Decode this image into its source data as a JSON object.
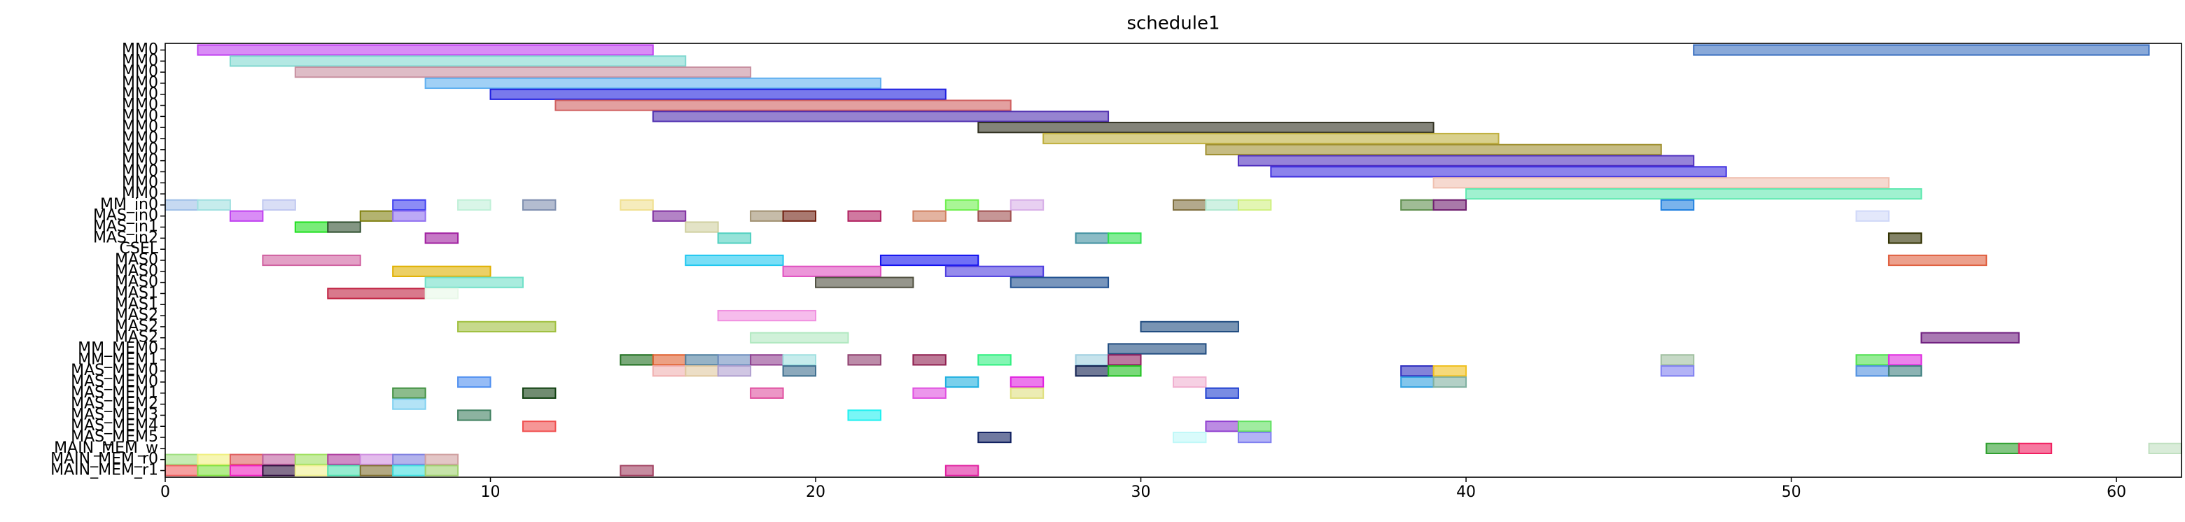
{
  "chart_data": {
    "type": "gantt",
    "title": "schedule1",
    "xlim": [
      0,
      62
    ],
    "xticks": [
      0,
      10,
      20,
      30,
      40,
      50,
      60
    ],
    "rows": [
      {
        "label": "MM0",
        "bars": [
          {
            "start": 1,
            "end": 15,
            "color": "#c040f0"
          },
          {
            "start": 47,
            "end": 61,
            "color": "#3a6fc0"
          }
        ]
      },
      {
        "label": "MM0",
        "bars": [
          {
            "start": 2,
            "end": 16,
            "color": "#80d8d0"
          }
        ]
      },
      {
        "label": "MM0",
        "bars": [
          {
            "start": 4,
            "end": 18,
            "color": "#c890a0"
          }
        ]
      },
      {
        "label": "MM0",
        "bars": [
          {
            "start": 8,
            "end": 22,
            "color": "#60b0f0"
          }
        ]
      },
      {
        "label": "MM0",
        "bars": [
          {
            "start": 10,
            "end": 24,
            "color": "#2020e0"
          }
        ]
      },
      {
        "label": "MM0",
        "bars": [
          {
            "start": 12,
            "end": 26,
            "color": "#d06060"
          }
        ]
      },
      {
        "label": "MM0",
        "bars": [
          {
            "start": 15,
            "end": 29,
            "color": "#5030b0"
          }
        ]
      },
      {
        "label": "MM0",
        "bars": [
          {
            "start": 25,
            "end": 39,
            "color": "#303020"
          }
        ]
      },
      {
        "label": "MM0",
        "bars": [
          {
            "start": 27,
            "end": 41,
            "color": "#c0b040"
          }
        ]
      },
      {
        "label": "MM0",
        "bars": [
          {
            "start": 32,
            "end": 46,
            "color": "#a09030"
          }
        ]
      },
      {
        "label": "MM0",
        "bars": [
          {
            "start": 33,
            "end": 47,
            "color": "#5030c0"
          }
        ]
      },
      {
        "label": "MM0",
        "bars": [
          {
            "start": 34,
            "end": 48,
            "color": "#4030e0"
          }
        ]
      },
      {
        "label": "MM0",
        "bars": [
          {
            "start": 39,
            "end": 53,
            "color": "#f0c0b0"
          }
        ]
      },
      {
        "label": "MM0",
        "bars": [
          {
            "start": 40,
            "end": 54,
            "color": "#60e8b0"
          }
        ]
      },
      {
        "label": "MM_in0",
        "bars": [
          {
            "start": 0,
            "end": 1,
            "color": "#a0c0e8"
          },
          {
            "start": 1,
            "end": 2,
            "color": "#a0e0e0"
          },
          {
            "start": 3,
            "end": 4,
            "color": "#c0c8f0"
          },
          {
            "start": 7,
            "end": 8,
            "color": "#4040f0"
          },
          {
            "start": 9,
            "end": 10,
            "color": "#c0f0d8"
          },
          {
            "start": 11,
            "end": 12,
            "color": "#8090b0"
          },
          {
            "start": 14,
            "end": 15,
            "color": "#f0e090"
          },
          {
            "start": 24,
            "end": 25,
            "color": "#70f050"
          },
          {
            "start": 26,
            "end": 27,
            "color": "#d8b0e8"
          },
          {
            "start": 31,
            "end": 32,
            "color": "#807040"
          },
          {
            "start": 32,
            "end": 33,
            "color": "#b0e8d0"
          },
          {
            "start": 33,
            "end": 34,
            "color": "#d0f080"
          },
          {
            "start": 38,
            "end": 39,
            "color": "#609050"
          },
          {
            "start": 39,
            "end": 40,
            "color": "#702070"
          },
          {
            "start": 46,
            "end": 47,
            "color": "#2080e0"
          }
        ]
      },
      {
        "label": "MAS_in0",
        "bars": [
          {
            "start": 2,
            "end": 3,
            "color": "#c040f0"
          },
          {
            "start": 6,
            "end": 7,
            "color": "#808010"
          },
          {
            "start": 7,
            "end": 8,
            "color": "#9070f0"
          },
          {
            "start": 15,
            "end": 16,
            "color": "#8030a0"
          },
          {
            "start": 18,
            "end": 19,
            "color": "#a09070"
          },
          {
            "start": 19,
            "end": 20,
            "color": "#702010"
          },
          {
            "start": 21,
            "end": 22,
            "color": "#b02060"
          },
          {
            "start": 23,
            "end": 24,
            "color": "#d08060"
          },
          {
            "start": 25,
            "end": 26,
            "color": "#a05050"
          },
          {
            "start": 52,
            "end": 53,
            "color": "#d0d8f8"
          }
        ]
      },
      {
        "label": "MAS_in1",
        "bars": [
          {
            "start": 4,
            "end": 5,
            "color": "#20e020"
          },
          {
            "start": 5,
            "end": 6,
            "color": "#305030"
          },
          {
            "start": 16,
            "end": 17,
            "color": "#d0d0a0"
          }
        ]
      },
      {
        "label": "MAS_in2",
        "bars": [
          {
            "start": 8,
            "end": 9,
            "color": "#a020a0"
          },
          {
            "start": 17,
            "end": 18,
            "color": "#50d0c0"
          },
          {
            "start": 28,
            "end": 29,
            "color": "#4090a0"
          },
          {
            "start": 29,
            "end": 30,
            "color": "#30e050"
          },
          {
            "start": 53,
            "end": 54,
            "color": "#303000"
          }
        ]
      },
      {
        "label": "CSEL",
        "bars": []
      },
      {
        "label": "MAS0",
        "bars": [
          {
            "start": 3,
            "end": 6,
            "color": "#d060a0"
          },
          {
            "start": 16,
            "end": 19,
            "color": "#20c8f0"
          },
          {
            "start": 22,
            "end": 25,
            "color": "#1010f0"
          },
          {
            "start": 53,
            "end": 56,
            "color": "#e06040"
          }
        ]
      },
      {
        "label": "MAS0",
        "bars": [
          {
            "start": 7,
            "end": 10,
            "color": "#e0b000"
          },
          {
            "start": 19,
            "end": 22,
            "color": "#e050c0"
          },
          {
            "start": 24,
            "end": 27,
            "color": "#5040e0"
          }
        ]
      },
      {
        "label": "MAS0",
        "bars": [
          {
            "start": 8,
            "end": 11,
            "color": "#70e0c8"
          },
          {
            "start": 20,
            "end": 23,
            "color": "#505040"
          },
          {
            "start": 26,
            "end": 29,
            "color": "#205090"
          }
        ]
      },
      {
        "label": "MAS1",
        "bars": [
          {
            "start": 5,
            "end": 8,
            "color": "#c02040"
          },
          {
            "start": 8,
            "end": 9,
            "color": "#e8f8e8"
          }
        ]
      },
      {
        "label": "MAS1",
        "bars": []
      },
      {
        "label": "MAS2",
        "bars": [
          {
            "start": 17,
            "end": 20,
            "color": "#f090e0"
          }
        ]
      },
      {
        "label": "MAS2",
        "bars": [
          {
            "start": 9,
            "end": 12,
            "color": "#a0c040"
          },
          {
            "start": 30,
            "end": 33,
            "color": "#204c80"
          }
        ]
      },
      {
        "label": "MAS2",
        "bars": [
          {
            "start": 18,
            "end": 21,
            "color": "#b0e8c0"
          },
          {
            "start": 54,
            "end": 57,
            "color": "#702080"
          }
        ]
      },
      {
        "label": "MM_MEM0",
        "bars": [
          {
            "start": 29,
            "end": 32,
            "color": "#204c80"
          }
        ]
      },
      {
        "label": "MM_MEM1",
        "bars": [
          {
            "start": 14,
            "end": 15,
            "color": "#207020"
          },
          {
            "start": 15,
            "end": 16,
            "color": "#e06030"
          },
          {
            "start": 16,
            "end": 17,
            "color": "#5080a0"
          },
          {
            "start": 17,
            "end": 18,
            "color": "#7090c0"
          },
          {
            "start": 18,
            "end": 19,
            "color": "#904090"
          },
          {
            "start": 19,
            "end": 20,
            "color": "#a0e0e0"
          },
          {
            "start": 21,
            "end": 22,
            "color": "#904070"
          },
          {
            "start": 23,
            "end": 24,
            "color": "#902050"
          },
          {
            "start": 25,
            "end": 26,
            "color": "#30f080"
          },
          {
            "start": 28,
            "end": 29,
            "color": "#a0d0e0"
          },
          {
            "start": 29,
            "end": 30,
            "color": "#902060"
          },
          {
            "start": 46,
            "end": 47,
            "color": "#a0c0a0"
          },
          {
            "start": 52,
            "end": 53,
            "color": "#50e050"
          },
          {
            "start": 53,
            "end": 54,
            "color": "#e030e0"
          }
        ]
      },
      {
        "label": "MAS_MEM0",
        "bars": [
          {
            "start": 15,
            "end": 16,
            "color": "#f0b0b0"
          },
          {
            "start": 16,
            "end": 17,
            "color": "#e0c8a0"
          },
          {
            "start": 17,
            "end": 18,
            "color": "#b0a0d0"
          },
          {
            "start": 19,
            "end": 20,
            "color": "#407090"
          },
          {
            "start": 28,
            "end": 29,
            "color": "#102050"
          },
          {
            "start": 29,
            "end": 30,
            "color": "#20c020"
          },
          {
            "start": 38,
            "end": 39,
            "color": "#3030c0"
          },
          {
            "start": 39,
            "end": 40,
            "color": "#f0c020"
          },
          {
            "start": 46,
            "end": 47,
            "color": "#8080f0"
          },
          {
            "start": 52,
            "end": 53,
            "color": "#5090e0"
          },
          {
            "start": 53,
            "end": 54,
            "color": "#408080"
          }
        ]
      },
      {
        "label": "MAS_MEM0",
        "bars": [
          {
            "start": 9,
            "end": 10,
            "color": "#5090f0"
          },
          {
            "start": 24,
            "end": 25,
            "color": "#20b0e0"
          },
          {
            "start": 26,
            "end": 27,
            "color": "#e020e0"
          },
          {
            "start": 31,
            "end": 32,
            "color": "#f0b0d0"
          },
          {
            "start": 38,
            "end": 39,
            "color": "#30a0e0"
          },
          {
            "start": 39,
            "end": 40,
            "color": "#80b0a0"
          }
        ]
      },
      {
        "label": "MAS_MEM1",
        "bars": [
          {
            "start": 7,
            "end": 8,
            "color": "#409040"
          },
          {
            "start": 11,
            "end": 12,
            "color": "#104010"
          },
          {
            "start": 18,
            "end": 19,
            "color": "#e050a0"
          },
          {
            "start": 23,
            "end": 24,
            "color": "#e050e0"
          },
          {
            "start": 26,
            "end": 27,
            "color": "#e0e080"
          },
          {
            "start": 32,
            "end": 33,
            "color": "#2040d0"
          }
        ]
      },
      {
        "label": "MAS_MEM2",
        "bars": [
          {
            "start": 7,
            "end": 8,
            "color": "#80d0f0"
          }
        ]
      },
      {
        "label": "MAS_MEM3",
        "bars": [
          {
            "start": 9,
            "end": 10,
            "color": "#408060"
          },
          {
            "start": 21,
            "end": 22,
            "color": "#20f0f0"
          }
        ]
      },
      {
        "label": "MAS_MEM4",
        "bars": [
          {
            "start": 11,
            "end": 12,
            "color": "#f05050"
          },
          {
            "start": 32,
            "end": 33,
            "color": "#9040d0"
          },
          {
            "start": 33,
            "end": 34,
            "color": "#60e060"
          }
        ]
      },
      {
        "label": "MAS_MEM5",
        "bars": [
          {
            "start": 25,
            "end": 26,
            "color": "#102060"
          },
          {
            "start": 31,
            "end": 32,
            "color": "#c0f8f8"
          },
          {
            "start": 33,
            "end": 34,
            "color": "#8080f0"
          }
        ]
      },
      {
        "label": "MAIN_MEM_w",
        "bars": [
          {
            "start": 56,
            "end": 57,
            "color": "#30a030"
          },
          {
            "start": 57,
            "end": 58,
            "color": "#f02060"
          },
          {
            "start": 61,
            "end": 62,
            "color": "#c0e0c0"
          }
        ]
      },
      {
        "label": "MAIN_MEM_r0",
        "bars": [
          {
            "start": 0,
            "end": 1,
            "color": "#a0e080"
          },
          {
            "start": 1,
            "end": 2,
            "color": "#f0f080"
          },
          {
            "start": 2,
            "end": 3,
            "color": "#e06060"
          },
          {
            "start": 3,
            "end": 4,
            "color": "#c060a0"
          },
          {
            "start": 4,
            "end": 5,
            "color": "#a0e060"
          },
          {
            "start": 5,
            "end": 6,
            "color": "#b040a0"
          },
          {
            "start": 6,
            "end": 7,
            "color": "#d090e0"
          },
          {
            "start": 7,
            "end": 8,
            "color": "#8080e0"
          },
          {
            "start": 8,
            "end": 9,
            "color": "#d0a0a0"
          }
        ]
      },
      {
        "label": "MAIN_MEM_r1",
        "bars": [
          {
            "start": 0,
            "end": 1,
            "color": "#f06060"
          },
          {
            "start": 1,
            "end": 2,
            "color": "#80e040"
          },
          {
            "start": 2,
            "end": 3,
            "color": "#f020c0"
          },
          {
            "start": 3,
            "end": 4,
            "color": "#301040"
          },
          {
            "start": 4,
            "end": 5,
            "color": "#f0f090"
          },
          {
            "start": 5,
            "end": 6,
            "color": "#50e0b0"
          },
          {
            "start": 6,
            "end": 7,
            "color": "#807030"
          },
          {
            "start": 7,
            "end": 8,
            "color": "#40e0e0"
          },
          {
            "start": 8,
            "end": 9,
            "color": "#a0d070"
          },
          {
            "start": 14,
            "end": 15,
            "color": "#a04060"
          },
          {
            "start": 24,
            "end": 25,
            "color": "#e020a0"
          }
        ]
      }
    ]
  }
}
